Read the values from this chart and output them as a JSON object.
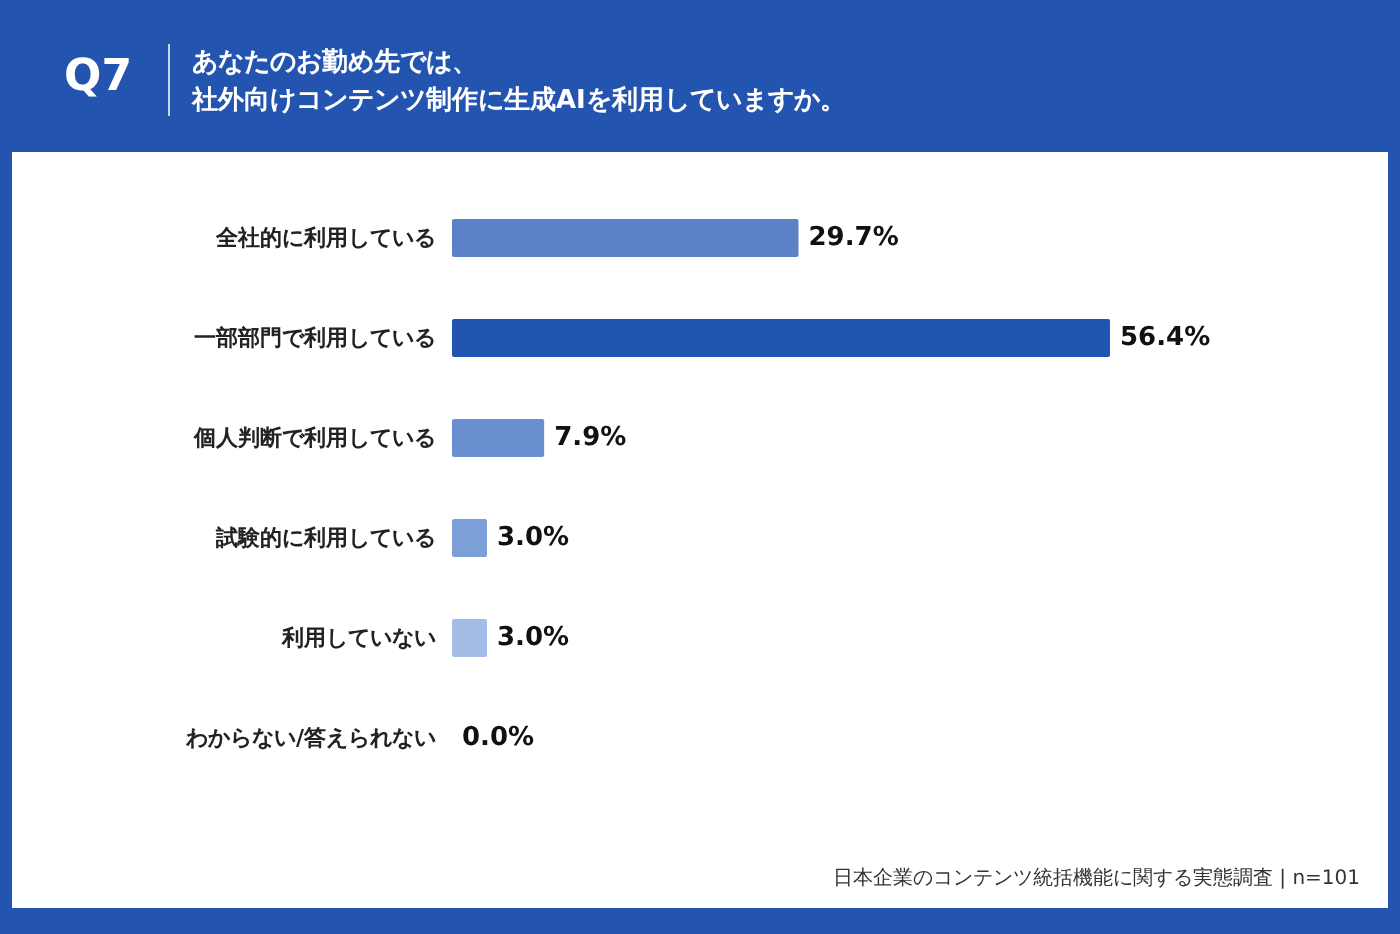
{
  "chart_data": {
    "type": "bar",
    "orientation": "horizontal",
    "title": "Q7",
    "subtitle": "あなたのお勤め先では、社外向けコンテンツ制作に生成AIを利用していますか。",
    "categories": [
      "全社的に利用している",
      "一部部門で利用している",
      "個人判断で利用している",
      "試験的に利用している",
      "利用していない",
      "わからない/答えられない"
    ],
    "values": [
      29.7,
      56.4,
      7.9,
      3.0,
      3.0,
      0.0
    ],
    "colors": [
      "#5b82c6",
      "#2255b0",
      "#6a8fd0",
      "#7d9fd8",
      "#a3bde6",
      "#c2d3ef"
    ],
    "value_labels": [
      "29.7%",
      "56.4%",
      "7.9%",
      "3.0%",
      "3.0%",
      "0.0%"
    ],
    "grid": false,
    "annotations": [
      "日本企業のコンテンツ統括機能に関する実態調査 | n=101"
    ]
  }
}
